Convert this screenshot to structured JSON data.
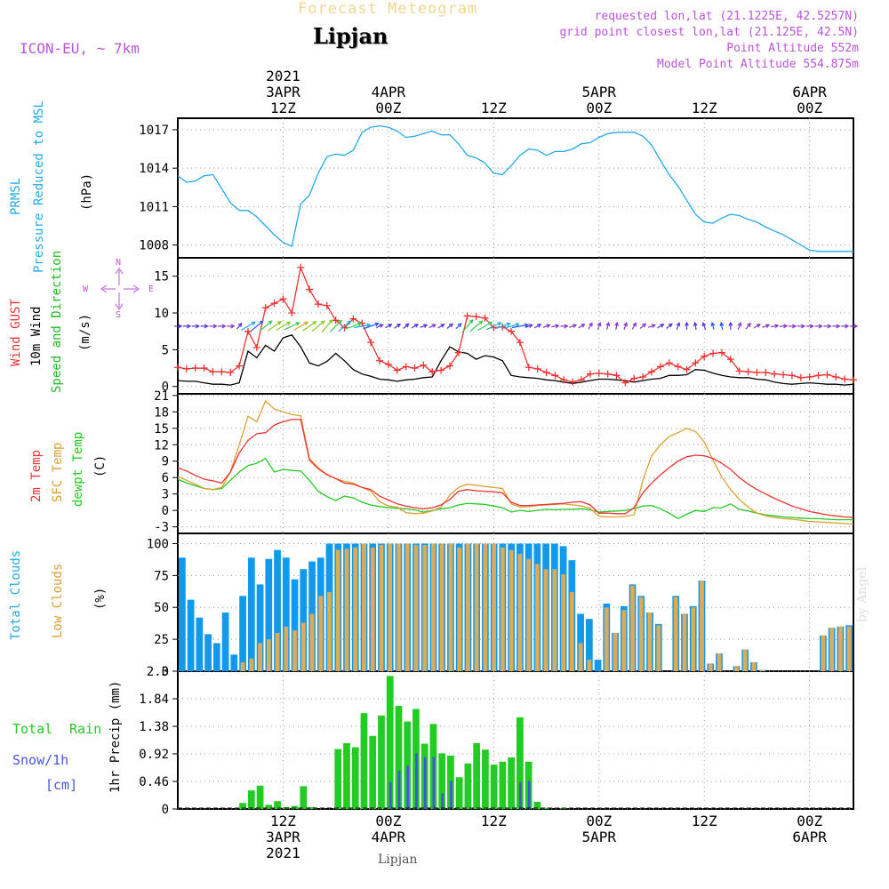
{
  "header": {
    "title": "Forecast Meteogram",
    "location": "Lipjan",
    "model": "ICON-EU, ~ 7km",
    "requested": "requested lon,lat (21.1225E, 42.5257N)",
    "grid_point": "grid point closest lon,lat (21.125E, 42.5N)",
    "point_altitude": "Point Altitude 552m",
    "model_altitude": "Model Point Altitude 554.875m",
    "credit": "by Angel",
    "footer_location": "Lipjan"
  },
  "colors": {
    "pressure": "#22aaee",
    "gust": "#ee3333",
    "wind": "#000000",
    "dir": "#22bb22",
    "compass": "#bb55dd",
    "temp2m": "#ee3333",
    "sfc": "#e0a030",
    "dewpt": "#22cc22",
    "total_clouds": "#1199ee",
    "low_clouds": "#ddaa55",
    "rain": "#22cc22",
    "snow": "#4455dd"
  },
  "top_axis": [
    {
      "line1": "2021",
      "line2": "3APR",
      "line3": "12Z"
    },
    {
      "line1": "",
      "line2": "4APR",
      "line3": "00Z"
    },
    {
      "line1": "",
      "line2": "",
      "line3": "12Z"
    },
    {
      "line1": "",
      "line2": "5APR",
      "line3": "00Z"
    },
    {
      "line1": "",
      "line2": "",
      "line3": "12Z"
    },
    {
      "line1": "",
      "line2": "6APR",
      "line3": "00Z"
    }
  ],
  "bottom_axis": [
    {
      "line1": "12Z",
      "line2": "3APR",
      "line3": "2021"
    },
    {
      "line1": "00Z",
      "line2": "4APR",
      "line3": ""
    },
    {
      "line1": "12Z",
      "line2": "",
      "line3": ""
    },
    {
      "line1": "00Z",
      "line2": "5APR",
      "line3": ""
    },
    {
      "line1": "12Z",
      "line2": "",
      "line3": ""
    },
    {
      "line1": "00Z",
      "line2": "6APR",
      "line3": ""
    }
  ],
  "panels": {
    "pressure": {
      "label1": "PRMSL",
      "label2": "Pressure Reduced to MSL",
      "unit": "(hPa)"
    },
    "wind": {
      "label1": "Wind GUST",
      "label2": "10m Wind",
      "label3": "Speed and Direction",
      "unit": "(m/s)",
      "compass_n": "N",
      "compass_s": "S",
      "compass_w": "W",
      "compass_e": "E"
    },
    "temp": {
      "label1": "2m Temp",
      "label2": "SFC Temp",
      "label3": "dewpt Temp",
      "unit": "(C)"
    },
    "clouds": {
      "label1": "Total Clouds",
      "label2": "Low Clouds",
      "unit": "(%)"
    },
    "precip": {
      "label1": "Total",
      "label1b": "Rain",
      "label2": "Snow/1h",
      "label3": "[cm]",
      "unit": "1hr Precip (mm)"
    }
  },
  "chart_data": {
    "type": "line",
    "time": {
      "start": "2021-04-03 00Z",
      "end": "2021-04-06 06Z",
      "step_hours": 1,
      "x_range_hours": [
        0,
        77
      ]
    },
    "pressure": {
      "ylabel": "(hPa)",
      "yticks": [
        1008,
        1011,
        1014,
        1017
      ],
      "ylim": [
        1007.0,
        1017.9
      ],
      "x": [
        0,
        1,
        2,
        3,
        4,
        6,
        7,
        8,
        9,
        10,
        11,
        12,
        13,
        14,
        15,
        16,
        17,
        18,
        19,
        20,
        21,
        22,
        23,
        24,
        25,
        26,
        27,
        28,
        29,
        30,
        31,
        32,
        33,
        34,
        35,
        36,
        37,
        38,
        39,
        40,
        41,
        42,
        43,
        44,
        45,
        46,
        47,
        48,
        49,
        50,
        51,
        52,
        53,
        54,
        55,
        56,
        57,
        58,
        59,
        60,
        61,
        62,
        63,
        64,
        65,
        66,
        67,
        68,
        69,
        70,
        71,
        72,
        73,
        74,
        75,
        76,
        77
      ],
      "values": [
        1013.4,
        1012.9,
        1013.0,
        1013.4,
        1013.5,
        1011.3,
        1010.7,
        1010.7,
        1010.2,
        1009.5,
        1008.8,
        1008.2,
        1007.9,
        1011.2,
        1011.9,
        1013.6,
        1014.9,
        1015.1,
        1015.0,
        1015.4,
        1016.8,
        1017.2,
        1017.3,
        1017.2,
        1016.9,
        1016.4,
        1016.5,
        1016.7,
        1016.9,
        1016.6,
        1016.6,
        1015.9,
        1015.0,
        1014.8,
        1014.4,
        1013.6,
        1013.5,
        1014.2,
        1015.0,
        1015.5,
        1015.4,
        1015.0,
        1015.3,
        1015.3,
        1015.5,
        1015.9,
        1016.0,
        1016.4,
        1016.7,
        1016.8,
        1016.8,
        1016.8,
        1016.5,
        1015.8,
        1014.6,
        1013.5,
        1012.6,
        1011.5,
        1010.4,
        1009.8,
        1009.7,
        1010.1,
        1010.4,
        1010.3,
        1010.0,
        1009.8,
        1009.4,
        1009.1,
        1008.8,
        1008.4,
        1008.0,
        1007.6,
        1007.5,
        1007.5,
        1007.5,
        1007.5,
        1007.5
      ]
    },
    "wind": {
      "ylabel": "(m/s)",
      "yticks": [
        0,
        5,
        10,
        15
      ],
      "ylim": [
        -1,
        17.5
      ],
      "x": [
        0,
        1,
        2,
        3,
        4,
        5,
        6,
        7,
        8,
        9,
        10,
        11,
        12,
        13,
        14,
        15,
        16,
        17,
        18,
        19,
        20,
        21,
        22,
        23,
        24,
        25,
        26,
        27,
        28,
        29,
        30,
        31,
        32,
        33,
        34,
        35,
        36,
        37,
        38,
        39,
        40,
        41,
        42,
        43,
        44,
        45,
        46,
        47,
        48,
        49,
        50,
        51,
        52,
        53,
        54,
        55,
        56,
        57,
        58,
        59,
        60,
        61,
        62,
        63,
        64,
        65,
        66,
        67,
        68,
        69,
        70,
        71,
        72,
        73,
        74,
        75,
        76,
        77
      ],
      "gust": [
        2.6,
        2.4,
        2.5,
        2.5,
        2.0,
        2.0,
        1.9,
        2.8,
        7.5,
        5.3,
        10.7,
        11.3,
        11.9,
        10.0,
        16.2,
        13.2,
        11.2,
        11.0,
        9.0,
        8.0,
        9.2,
        8.6,
        6.0,
        3.5,
        3.0,
        2.2,
        2.7,
        2.5,
        2.9,
        2.0,
        2.2,
        2.8,
        4.6,
        9.6,
        9.5,
        9.3,
        8.0,
        8.1,
        7.5,
        6.0,
        2.6,
        2.4,
        1.9,
        1.5,
        0.9,
        0.6,
        0.9,
        1.7,
        1.8,
        1.7,
        1.5,
        0.5,
        1.1,
        1.3,
        2.0,
        2.7,
        3.2,
        2.7,
        2.3,
        3.2,
        4.1,
        4.5,
        4.6,
        3.7,
        2.1,
        2.0,
        1.9,
        1.9,
        1.7,
        1.6,
        1.5,
        1.2,
        1.3,
        1.5,
        1.6,
        1.3,
        1.0,
        0.9
      ],
      "wind": [
        0.8,
        0.7,
        0.7,
        0.5,
        0.3,
        0.3,
        0.2,
        0.5,
        4.8,
        3.9,
        5.6,
        4.8,
        6.6,
        7.0,
        5.4,
        3.2,
        2.8,
        3.4,
        4.5,
        3.5,
        2.3,
        1.7,
        1.4,
        1.0,
        0.9,
        0.7,
        0.9,
        1.0,
        1.2,
        1.3,
        3.5,
        5.4,
        4.7,
        4.5,
        3.7,
        4.2,
        4.0,
        3.5,
        1.5,
        1.3,
        1.2,
        1.1,
        0.9,
        0.8,
        0.6,
        0.4,
        0.6,
        0.8,
        1.0,
        1.0,
        0.9,
        0.8,
        0.6,
        0.8,
        1.0,
        1.1,
        1.5,
        1.5,
        1.6,
        2.3,
        2.2,
        1.8,
        1.5,
        1.3,
        1.2,
        1.2,
        1.0,
        0.9,
        0.6,
        0.4,
        0.3,
        0.4,
        0.5,
        0.4,
        0.3,
        0.3,
        0.2,
        0.3
      ],
      "dir_deg": [
        270,
        270,
        270,
        270,
        270,
        270,
        270,
        220,
        240,
        230,
        230,
        235,
        240,
        245,
        240,
        235,
        230,
        220,
        225,
        230,
        250,
        260,
        250,
        245,
        240,
        235,
        230,
        240,
        250,
        245,
        240,
        230,
        225,
        220,
        230,
        240,
        245,
        250,
        255,
        260,
        250,
        240,
        250,
        260,
        270,
        250,
        240,
        210,
        200,
        195,
        190,
        200,
        210,
        230,
        250,
        240,
        230,
        200,
        180,
        170,
        160,
        165,
        170,
        180,
        200,
        220,
        240,
        250,
        260,
        265,
        270,
        270,
        270,
        270,
        270,
        270,
        270,
        270
      ]
    },
    "temperature": {
      "ylabel": "(C)",
      "yticks": [
        -3,
        0,
        3,
        6,
        9,
        12,
        15,
        18,
        21
      ],
      "ylim": [
        -4.2,
        21.3
      ],
      "x": [
        0,
        1,
        2,
        3,
        4,
        5,
        6,
        7,
        8,
        9,
        10,
        11,
        12,
        13,
        14,
        15,
        16,
        17,
        18,
        19,
        20,
        21,
        22,
        23,
        24,
        25,
        26,
        27,
        28,
        29,
        30,
        31,
        32,
        33,
        34,
        35,
        36,
        37,
        38,
        39,
        40,
        41,
        42,
        43,
        44,
        45,
        46,
        47,
        48,
        49,
        50,
        51,
        52,
        53,
        54,
        55,
        56,
        57,
        58,
        59,
        60,
        61,
        62,
        63,
        64,
        65,
        66,
        67,
        68,
        69,
        70,
        71,
        72,
        73,
        74,
        75,
        76,
        77
      ],
      "temp2m": [
        7.8,
        7.2,
        6.4,
        5.7,
        5.4,
        5.0,
        7.0,
        10.5,
        12.8,
        14.0,
        14.2,
        15.6,
        16.2,
        16.6,
        16.6,
        9.2,
        7.6,
        6.5,
        5.8,
        5.0,
        4.8,
        4.2,
        3.8,
        2.6,
        1.9,
        1.2,
        0.8,
        0.5,
        0.3,
        0.5,
        1.0,
        2.0,
        3.5,
        3.8,
        3.6,
        3.5,
        3.4,
        3.2,
        1.5,
        0.9,
        0.9,
        1.0,
        1.1,
        1.2,
        1.3,
        1.5,
        1.6,
        1.0,
        -0.5,
        -0.5,
        -0.6,
        -0.6,
        0.5,
        3.2,
        5.0,
        6.5,
        7.8,
        9.0,
        9.8,
        10.1,
        10.0,
        9.5,
        8.6,
        7.5,
        6.0,
        4.8,
        3.8,
        3.0,
        2.2,
        1.5,
        0.8,
        0.3,
        -0.2,
        -0.5,
        -0.8,
        -1.0,
        -1.2,
        -1.3
      ],
      "sfc": [
        6.2,
        5.5,
        4.8,
        4.0,
        3.8,
        4.2,
        7.0,
        12.0,
        17.2,
        16.2,
        20.0,
        18.5,
        18.0,
        17.5,
        17.3,
        9.5,
        7.8,
        6.6,
        5.8,
        5.3,
        5.0,
        4.2,
        3.5,
        1.6,
        0.8,
        0.6,
        -0.4,
        -0.6,
        -0.5,
        -0.1,
        0.6,
        2.8,
        4.2,
        4.8,
        4.6,
        4.4,
        4.2,
        4.0,
        1.2,
        0.6,
        0.7,
        0.9,
        1.0,
        1.1,
        1.2,
        1.0,
        0.8,
        0.4,
        -1.1,
        -1.2,
        -1.2,
        -1.1,
        -0.8,
        5.5,
        10.0,
        12.0,
        13.5,
        14.2,
        15.0,
        14.4,
        12.5,
        9.2,
        6.1,
        3.8,
        2.0,
        0.6,
        -0.5,
        -1.0,
        -1.3,
        -1.5,
        -1.6,
        -1.8,
        -2.0,
        -2.1,
        -2.2,
        -2.3,
        -2.4,
        -2.5
      ],
      "dewpt": [
        5.7,
        5.0,
        4.5,
        4.0,
        3.8,
        4.0,
        5.5,
        7.0,
        8.2,
        8.6,
        9.5,
        7.0,
        7.5,
        7.3,
        7.2,
        5.5,
        3.5,
        2.5,
        1.8,
        2.6,
        2.3,
        1.5,
        1.0,
        0.7,
        0.5,
        0.4,
        0.3,
        0.1,
        -0.3,
        0.0,
        0.3,
        0.5,
        1.0,
        1.3,
        1.2,
        1.1,
        0.8,
        0.5,
        -0.3,
        0.0,
        -0.2,
        0.0,
        0.2,
        0.1,
        0.2,
        0.2,
        0.3,
        0.1,
        -0.3,
        -0.2,
        -0.1,
        0.0,
        0.3,
        0.8,
        0.9,
        0.3,
        -0.5,
        -1.5,
        -0.7,
        0.0,
        -0.2,
        0.5,
        0.5,
        1.2,
        0.2,
        -0.1,
        -0.5,
        -0.8,
        -1.0,
        -1.2,
        -1.3,
        -1.4,
        -1.5,
        -1.5,
        -1.6,
        -1.7,
        -1.7,
        -1.7
      ]
    },
    "clouds": {
      "ylabel": "(%)",
      "yticks": [
        0,
        25,
        50,
        75,
        100
      ],
      "ylim": [
        0,
        108
      ],
      "x": [
        0,
        1,
        2,
        3,
        4,
        5,
        6,
        7,
        8,
        9,
        10,
        11,
        12,
        13,
        14,
        15,
        16,
        17,
        18,
        19,
        20,
        21,
        22,
        23,
        24,
        25,
        26,
        27,
        28,
        29,
        30,
        31,
        32,
        33,
        34,
        35,
        36,
        37,
        38,
        39,
        40,
        41,
        42,
        43,
        44,
        45,
        46,
        47,
        48,
        49,
        50,
        51,
        52,
        53,
        54,
        55,
        56,
        57,
        58,
        59,
        60,
        61,
        62,
        63,
        64,
        65,
        66,
        67,
        68,
        69,
        70,
        71,
        72,
        73,
        74,
        75,
        76,
        77
      ],
      "total": [
        89,
        56,
        42,
        29,
        22,
        46,
        13,
        59,
        89,
        68,
        88,
        95,
        89,
        72,
        80,
        86,
        89,
        100,
        100,
        100,
        100,
        100,
        100,
        100,
        100,
        100,
        100,
        100,
        100,
        100,
        100,
        100,
        100,
        100,
        100,
        100,
        100,
        100,
        100,
        100,
        100,
        100,
        100,
        100,
        98,
        87,
        45,
        41,
        9,
        53,
        30,
        51,
        68,
        59,
        46,
        37,
        0,
        59,
        45,
        51,
        71,
        6,
        14,
        0,
        4,
        17,
        7,
        1,
        0,
        0,
        0,
        0,
        0,
        0,
        28,
        34,
        35,
        36
      ],
      "low": [
        0,
        0,
        0,
        0,
        0,
        0,
        0,
        7,
        10,
        22,
        25,
        30,
        35,
        32,
        38,
        45,
        59,
        62,
        95,
        96,
        97,
        100,
        97,
        99,
        100,
        100,
        100,
        99,
        99,
        100,
        100,
        100,
        97,
        100,
        100,
        100,
        100,
        97,
        95,
        92,
        88,
        84,
        80,
        80,
        76,
        62,
        22,
        9,
        0,
        50,
        30,
        48,
        67,
        58,
        46,
        36,
        0,
        58,
        45,
        50,
        71,
        6,
        14,
        0,
        4,
        17,
        7,
        1,
        0,
        0,
        0,
        0,
        0,
        0,
        28,
        34,
        35,
        35
      ]
    },
    "precip": {
      "ylabel": "1hr Precip (mm)",
      "yticks": [
        0,
        0.46,
        0.92,
        1.38,
        1.84,
        2.3
      ],
      "ylim": [
        0,
        2.3
      ],
      "x": [
        0,
        1,
        2,
        3,
        4,
        5,
        6,
        7,
        8,
        9,
        10,
        11,
        12,
        13,
        14,
        15,
        16,
        17,
        18,
        19,
        20,
        21,
        22,
        23,
        24,
        25,
        26,
        27,
        28,
        29,
        30,
        31,
        32,
        33,
        34,
        35,
        36,
        37,
        38,
        39,
        40,
        41,
        42,
        43,
        44,
        45,
        46,
        47,
        48,
        49,
        50,
        51,
        52,
        53,
        54,
        55,
        56,
        57,
        58,
        59,
        60,
        61,
        62,
        63,
        64,
        65,
        66,
        67,
        68,
        69,
        70,
        71,
        72,
        73,
        74,
        75,
        76,
        77
      ],
      "rain": [
        0,
        0,
        0,
        0,
        0,
        0,
        0,
        0.1,
        0.31,
        0.39,
        0.07,
        0.13,
        0.03,
        0.05,
        0.38,
        0.03,
        0,
        0,
        1.0,
        1.1,
        1.03,
        1.6,
        1.22,
        1.56,
        2.22,
        1.72,
        1.46,
        1.67,
        1.09,
        1.42,
        0.93,
        0.89,
        0.53,
        0.76,
        1.1,
        0.99,
        0.74,
        0.79,
        0.86,
        1.53,
        0.79,
        0.12,
        0.02,
        0,
        0.01,
        0,
        0,
        0,
        0,
        0,
        0,
        0,
        0,
        0,
        0,
        0,
        0,
        0,
        0,
        0,
        0,
        0,
        0,
        0,
        0,
        0,
        0,
        0,
        0,
        0,
        0,
        0,
        0,
        0,
        0,
        0,
        0,
        0
      ],
      "snow": [
        0,
        0,
        0,
        0,
        0,
        0,
        0,
        0,
        0,
        0,
        0,
        0,
        0,
        0,
        0,
        0,
        0,
        0,
        0,
        0,
        0,
        0,
        0,
        0,
        0.45,
        0.64,
        0.72,
        0.93,
        0.86,
        0.87,
        0.26,
        0.47,
        0,
        0,
        0,
        0,
        0,
        0,
        0,
        0.45,
        0.47,
        0,
        0,
        0,
        0,
        0,
        0,
        0,
        0,
        0,
        0,
        0,
        0,
        0,
        0,
        0,
        0,
        0,
        0,
        0,
        0,
        0,
        0,
        0,
        0,
        0,
        0,
        0,
        0,
        0,
        0,
        0,
        0,
        0,
        0,
        0,
        0,
        0
      ]
    }
  }
}
